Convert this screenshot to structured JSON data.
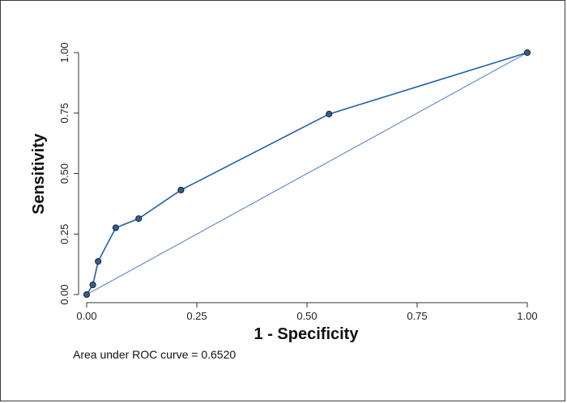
{
  "chart_data": {
    "type": "line",
    "xlabel": "1 - Specificity",
    "ylabel": "Sensitivity",
    "xlim": [
      0,
      1
    ],
    "ylim": [
      0,
      1
    ],
    "xticks": [
      0,
      0.25,
      0.5,
      0.75,
      1
    ],
    "yticks": [
      0,
      0.25,
      0.5,
      0.75,
      1
    ],
    "xtick_labels": [
      "0.00",
      "0.25",
      "0.50",
      "0.75",
      "1.00"
    ],
    "ytick_labels": [
      "0.00",
      "0.25",
      "0.50",
      "0.75",
      "1.00"
    ],
    "grid": false,
    "annotation": "Area under ROC curve = 0.6520",
    "series": [
      {
        "x": [
          0,
          0.014,
          0.026,
          0.066,
          0.118,
          0.214,
          0.55,
          1.0
        ],
        "y": [
          0,
          0.04,
          0.137,
          0.276,
          0.314,
          0.432,
          0.746,
          1.0
        ],
        "color": "#1f5fa8",
        "marker_fill": "#2e5f91"
      }
    ],
    "reference_line": {
      "x": [
        0,
        1
      ],
      "y": [
        0,
        1
      ],
      "color": "#6a8fc8"
    }
  }
}
